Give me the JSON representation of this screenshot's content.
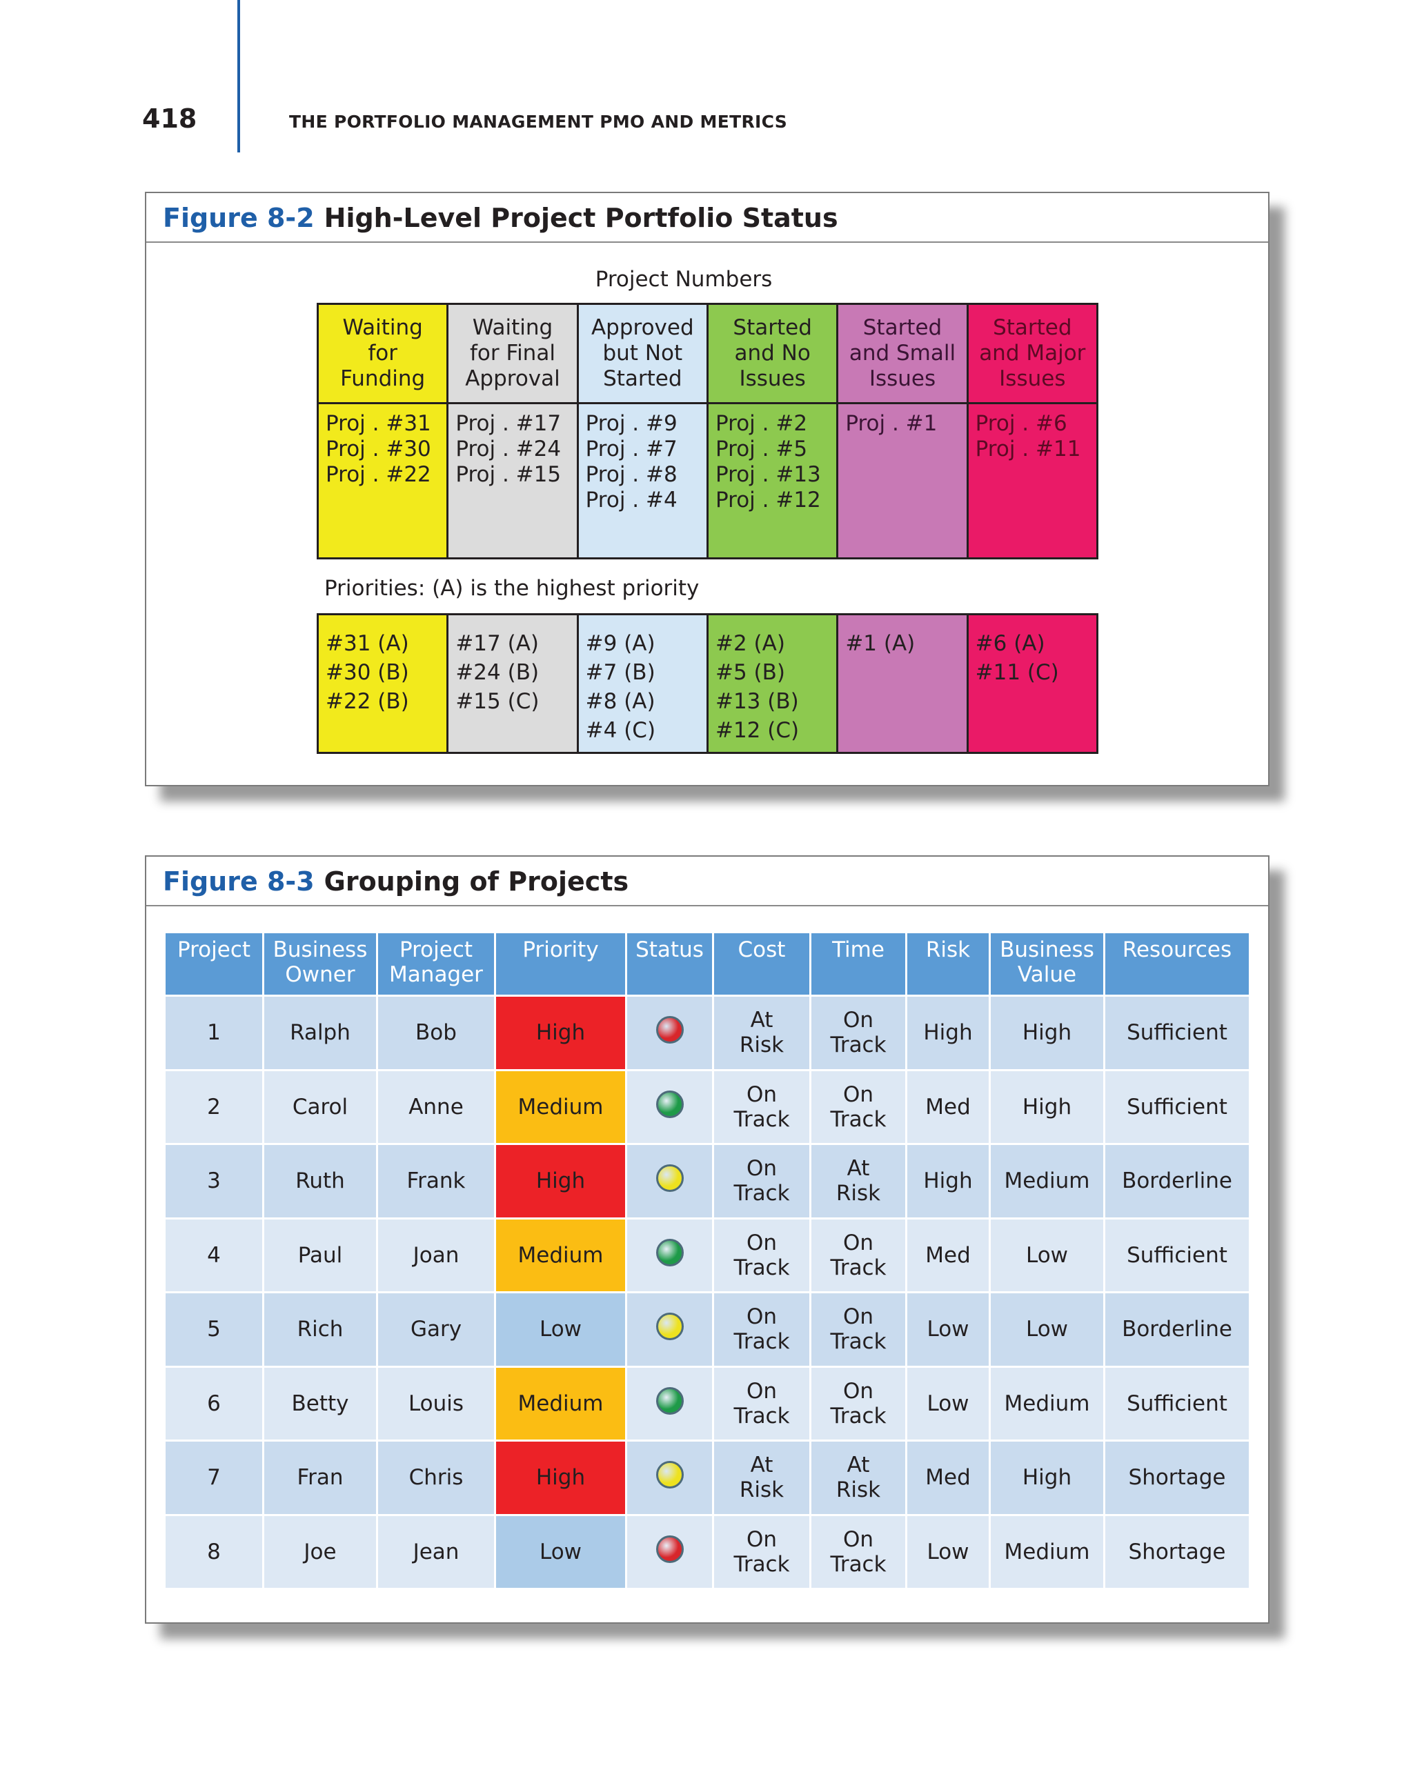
{
  "header": {
    "page_number": "418",
    "running_title": "THE PORTFOLIO MANAGEMENT PMO AND METRICS"
  },
  "figure_8_2": {
    "label": "Figure 8-2",
    "title": "High-Level Project Portfolio Status",
    "caption_top": "Project Numbers",
    "priorities_caption": "Priorities: (A) is the highest priority",
    "columns": [
      {
        "header": "Waiting\nfor\nFunding",
        "color": "#f2ea1c",
        "text_color": "#231f20",
        "projects": "Proj . #31\nProj . #30\nProj . #22",
        "priorities": "#31 (A)\n#30 (B)\n#22 (B)"
      },
      {
        "header": "Waiting\nfor Final\nApproval",
        "color": "#dcdcdc",
        "text_color": "#231f20",
        "projects": "Proj . #17\nProj . #24\nProj . #15",
        "priorities": "#17 (A)\n#24 (B)\n#15 (C)"
      },
      {
        "header": "Approved\nbut Not\nStarted",
        "color": "#d3e6f5",
        "text_color": "#231f20",
        "projects": "Proj . #9\nProj . #7\nProj . #8\nProj . #4",
        "priorities": "#9 (A)\n#7 (B)\n#8 (A)\n#4 (C)"
      },
      {
        "header": "Started\nand No\nIssues",
        "color": "#8dc94f",
        "text_color": "#231f20",
        "projects": "Proj . #2\nProj . #5\nProj . #13\nProj . #12",
        "priorities": "#2 (A)\n#5 (B)\n#13 (B)\n#12 (C)"
      },
      {
        "header": "Started\nand Small\nIssues",
        "color": "#c879b5",
        "text_color": "#3a1434",
        "projects": "Proj . #1",
        "priorities": "#1 (A)"
      },
      {
        "header": "Started\nand Major\nIssues",
        "color": "#ea1a67",
        "text_color": "#5c0a24",
        "projects": "Proj . #6\nProj . #11",
        "priorities": "#6 (A)\n#11 (C)"
      }
    ]
  },
  "figure_8_3": {
    "label": "Figure 8-3",
    "title": "Grouping of Projects",
    "columns": [
      "Project",
      "Business\nOwner",
      "Project\nManager",
      "Priority",
      "Status",
      "Cost",
      "Time",
      "Risk",
      "Business\nValue",
      "Resources"
    ],
    "priority_colors": {
      "High": "#ec2227",
      "Medium": "#fbbd13",
      "Low": "#abcbe8"
    },
    "rows": [
      [
        "1",
        "Ralph",
        "Bob",
        "High",
        "#d8262b",
        "At\nRisk",
        "On\nTrack",
        "High",
        "High",
        "Sufficient"
      ],
      [
        "2",
        "Carol",
        "Anne",
        "Medium",
        "#1e9a48",
        "On\nTrack",
        "On\nTrack",
        "Med",
        "High",
        "Sufficient"
      ],
      [
        "3",
        "Ruth",
        "Frank",
        "High",
        "#eee21f",
        "On\nTrack",
        "At\nRisk",
        "High",
        "Medium",
        "Borderline"
      ],
      [
        "4",
        "Paul",
        "Joan",
        "Medium",
        "#1e9a48",
        "On\nTrack",
        "On\nTrack",
        "Med",
        "Low",
        "Sufficient"
      ],
      [
        "5",
        "Rich",
        "Gary",
        "Low",
        "#eee21f",
        "On\nTrack",
        "On\nTrack",
        "Low",
        "Low",
        "Borderline"
      ],
      [
        "6",
        "Betty",
        "Louis",
        "Medium",
        "#1e9a48",
        "On\nTrack",
        "On\nTrack",
        "Low",
        "Medium",
        "Sufficient"
      ],
      [
        "7",
        "Fran",
        "Chris",
        "High",
        "#eee21f",
        "At\nRisk",
        "At\nRisk",
        "Med",
        "High",
        "Shortage"
      ],
      [
        "8",
        "Joe",
        "Jean",
        "Low",
        "#d8262b",
        "On\nTrack",
        "On\nTrack",
        "Low",
        "Medium",
        "Shortage"
      ]
    ]
  }
}
